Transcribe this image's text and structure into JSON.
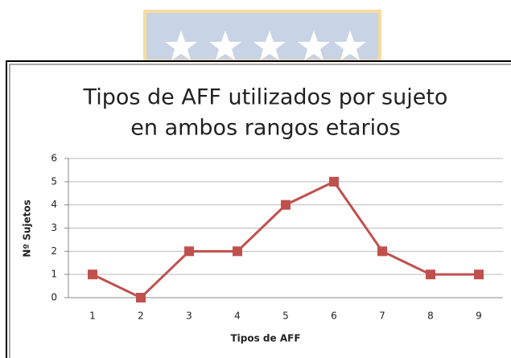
{
  "chart_data": {
    "type": "line",
    "title": [
      "Tipos de AFF utilizados por sujeto",
      "en ambos rangos etarios"
    ],
    "x_label": "Tipos de AFF",
    "y_label": "Nº Sujetos",
    "categories": [
      "1",
      "2",
      "3",
      "4",
      "5",
      "6",
      "7",
      "8",
      "9"
    ],
    "values": [
      1,
      0,
      2,
      2,
      4,
      5,
      2,
      1,
      1
    ],
    "color": "#c0504d",
    "ylim": [
      0,
      6
    ],
    "yticks": [
      0,
      1,
      2,
      3,
      4,
      5,
      6
    ],
    "grid": true
  }
}
